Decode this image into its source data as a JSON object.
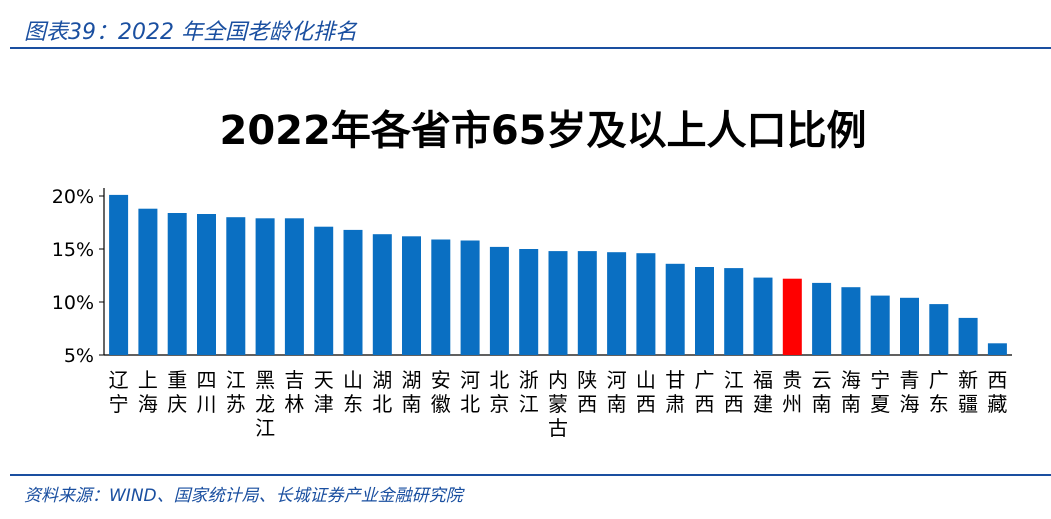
{
  "figure_caption": "图表39：2022 年全国老龄化排名",
  "source_note": "资料来源：WIND、国家统计局、长城证券产业金融研究院",
  "colors": {
    "bar": "#0a6fc2",
    "highlight": "#ff0000",
    "caption": "#1a4fa0"
  },
  "chart_data": {
    "type": "bar",
    "title": "2022年各省市65岁及以上人口比例",
    "xlabel": "",
    "ylabel": "",
    "ylim": [
      0.05,
      0.2
    ],
    "yticks": [
      "5%",
      "10%",
      "15%",
      "20%"
    ],
    "ytick_values": [
      0.05,
      0.1,
      0.15,
      0.2
    ],
    "grid": false,
    "highlight_category": "贵州",
    "categories": [
      "辽宁",
      "上海",
      "重庆",
      "四川",
      "江苏",
      "黑龙江",
      "吉林",
      "天津",
      "山东",
      "湖北",
      "湖南",
      "安徽",
      "河北",
      "北京",
      "浙江",
      "内蒙古",
      "陕西",
      "河南",
      "山西",
      "甘肃",
      "广西",
      "江西",
      "福建",
      "贵州",
      "云南",
      "海南",
      "宁夏",
      "青海",
      "广东",
      "新疆",
      "西藏"
    ],
    "values": [
      0.201,
      0.188,
      0.184,
      0.183,
      0.18,
      0.179,
      0.179,
      0.171,
      0.168,
      0.164,
      0.162,
      0.159,
      0.158,
      0.152,
      0.15,
      0.148,
      0.148,
      0.147,
      0.146,
      0.136,
      0.133,
      0.132,
      0.123,
      0.122,
      0.118,
      0.114,
      0.106,
      0.104,
      0.098,
      0.085,
      0.061
    ]
  }
}
